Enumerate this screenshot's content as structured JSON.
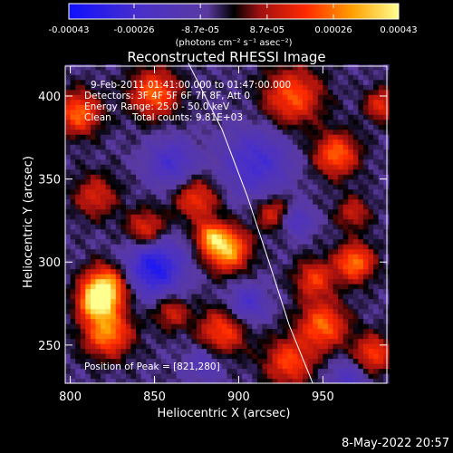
{
  "chart_data": {
    "type": "heatmap",
    "title": "Reconstructed RHESSI Image",
    "xlabel": "Heliocentric X (arcsec)",
    "ylabel": "Heliocentric Y (arcsec)",
    "xlim": [
      797,
      988
    ],
    "ylim": [
      227,
      418
    ],
    "x_ticks": [
      800,
      850,
      900,
      950
    ],
    "y_ticks": [
      250,
      300,
      350,
      400
    ],
    "colorbar": {
      "range": [
        -0.00043,
        0.00043
      ],
      "tick_values": [
        -0.00043,
        -0.00026,
        -8.7e-05,
        8.7e-05,
        0.00026,
        0.00043
      ],
      "tick_labels": [
        "-0.00043",
        "-0.00026",
        "-8.7e-05",
        "8.7e-05",
        "0.00026",
        "0.00043"
      ],
      "unit_label": "(photons cm⁻² s⁻¹ asec⁻²)"
    },
    "annotations": {
      "time_range": "9-Feb-2011 01:41:00.000 to 01:47:00.000",
      "detectors": "Detectors: 3F 4F 5F 6F 7F 8F, Att 0",
      "energy_range": "Energy Range: 25.0 - 50.0 keV",
      "clean": "Clean",
      "total_counts": "Total counts: 9.81E+03",
      "peak": "Position of Peak = [821,280]"
    },
    "limb_curve": [
      [
        870,
        420
      ],
      [
        890,
        380
      ],
      [
        905,
        340
      ],
      [
        918,
        300
      ],
      [
        930,
        262
      ],
      [
        944,
        227
      ]
    ],
    "hot_spots": [
      {
        "x": 821,
        "y": 285,
        "sigma": 9,
        "amp": 1.0
      },
      {
        "x": 815,
        "y": 276,
        "sigma": 7,
        "amp": 0.8
      },
      {
        "x": 893,
        "y": 308,
        "sigma": 9,
        "amp": 0.95
      },
      {
        "x": 883,
        "y": 316,
        "sigma": 6,
        "amp": 0.6
      },
      {
        "x": 822,
        "y": 258,
        "sigma": 10,
        "amp": 0.8
      },
      {
        "x": 805,
        "y": 390,
        "sigma": 9,
        "amp": 0.7
      },
      {
        "x": 850,
        "y": 402,
        "sigma": 10,
        "amp": 0.7
      },
      {
        "x": 932,
        "y": 400,
        "sigma": 12,
        "amp": 0.65
      },
      {
        "x": 958,
        "y": 365,
        "sigma": 9,
        "amp": 0.7
      },
      {
        "x": 969,
        "y": 300,
        "sigma": 8,
        "amp": 0.75
      },
      {
        "x": 945,
        "y": 290,
        "sigma": 8,
        "amp": 0.55
      },
      {
        "x": 875,
        "y": 338,
        "sigma": 9,
        "amp": 0.55
      },
      {
        "x": 845,
        "y": 320,
        "sigma": 8,
        "amp": 0.55
      },
      {
        "x": 950,
        "y": 262,
        "sigma": 10,
        "amp": 0.7
      },
      {
        "x": 930,
        "y": 240,
        "sigma": 10,
        "amp": 0.6
      },
      {
        "x": 890,
        "y": 258,
        "sigma": 10,
        "amp": 0.6
      },
      {
        "x": 980,
        "y": 245,
        "sigma": 8,
        "amp": 0.6
      },
      {
        "x": 815,
        "y": 340,
        "sigma": 9,
        "amp": 0.45
      },
      {
        "x": 985,
        "y": 395,
        "sigma": 7,
        "amp": 0.5
      },
      {
        "x": 920,
        "y": 330,
        "sigma": 7,
        "amp": 0.45
      },
      {
        "x": 860,
        "y": 270,
        "sigma": 7,
        "amp": 0.45
      },
      {
        "x": 968,
        "y": 330,
        "sigma": 7,
        "amp": 0.4
      }
    ],
    "cold_spots": [
      {
        "x": 850,
        "y": 297,
        "sigma": 12,
        "amp": -0.75
      },
      {
        "x": 910,
        "y": 360,
        "sigma": 14,
        "amp": -0.5
      },
      {
        "x": 905,
        "y": 275,
        "sigma": 8,
        "amp": -0.45
      },
      {
        "x": 860,
        "y": 360,
        "sigma": 10,
        "amp": -0.45
      },
      {
        "x": 935,
        "y": 325,
        "sigma": 6,
        "amp": -0.4
      },
      {
        "x": 965,
        "y": 230,
        "sigma": 8,
        "amp": -0.35
      },
      {
        "x": 880,
        "y": 240,
        "sigma": 8,
        "amp": -0.3
      }
    ]
  },
  "footer": {
    "timestamp": "8-May-2022 20:57"
  }
}
